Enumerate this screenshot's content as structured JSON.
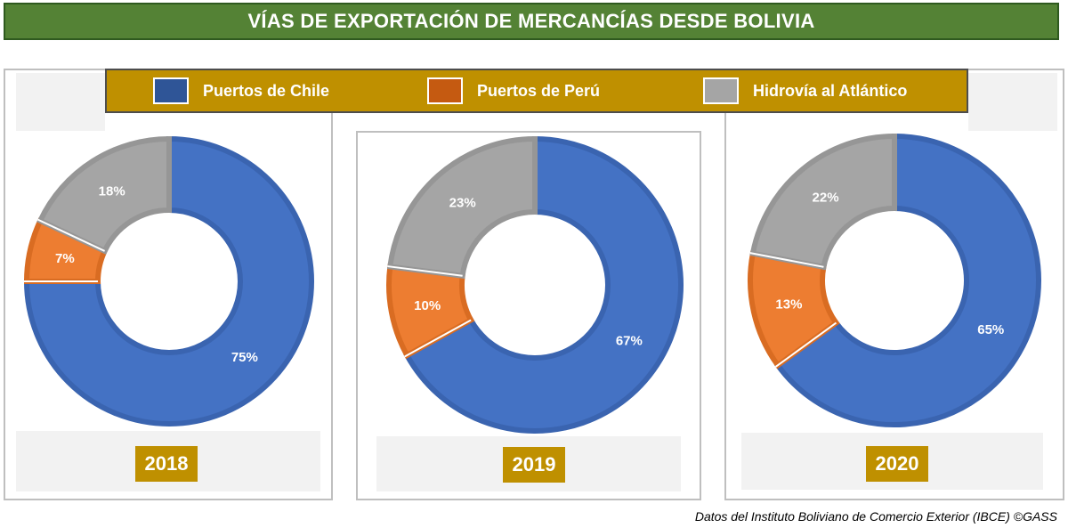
{
  "title": "VÍAS DE EXPORTACIÓN DE MERCANCÍAS DESDE BOLIVIA",
  "legend": [
    {
      "label": "Puertos de Chile",
      "color": "#4472c4",
      "swatch": "#2f5597"
    },
    {
      "label": "Puertos de Perú",
      "color": "#ed7d31",
      "swatch": "#c55a11"
    },
    {
      "label": "Hidrovía al Atlántico",
      "color": "#a5a5a5",
      "swatch": "#a5a5a5"
    }
  ],
  "source": "Datos del Instituto Boliviano de Comercio Exterior (IBCE)  ©GASS",
  "chart_data": [
    {
      "type": "pie",
      "donut": true,
      "year": "2018",
      "categories": [
        "Puertos de Chile",
        "Puertos de Perú",
        "Hidrovía al Atlántico"
      ],
      "values": [
        75,
        7,
        18
      ],
      "labels": [
        "75%",
        "7%",
        "18%"
      ]
    },
    {
      "type": "pie",
      "donut": true,
      "year": "2019",
      "categories": [
        "Puertos de Chile",
        "Puertos de Perú",
        "Hidrovía al Atlántico"
      ],
      "values": [
        67,
        10,
        23
      ],
      "labels": [
        "67%",
        "10%",
        "23%"
      ]
    },
    {
      "type": "pie",
      "donut": true,
      "year": "2020",
      "categories": [
        "Puertos de Chile",
        "Puertos de Perú",
        "Hidrovía al Atlántico"
      ],
      "values": [
        65,
        13,
        22
      ],
      "labels": [
        "65%",
        "13%",
        "22%"
      ]
    }
  ]
}
